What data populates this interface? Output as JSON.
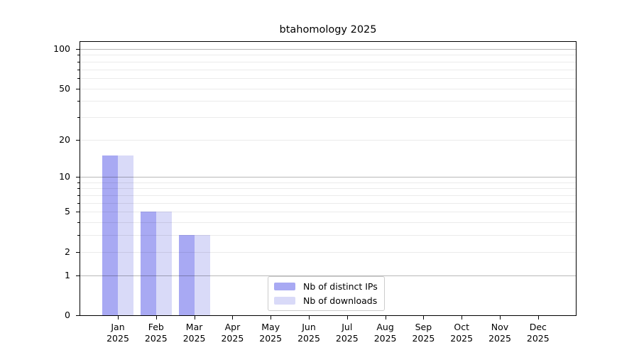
{
  "figure": {
    "title": "btahomology 2025"
  },
  "chart_data": {
    "type": "bar",
    "title": "btahomology 2025",
    "categories": [
      "Jan 2025",
      "Feb 2025",
      "Mar 2025",
      "Apr 2025",
      "May 2025",
      "Jun 2025",
      "Jul 2025",
      "Aug 2025",
      "Sep 2025",
      "Oct 2025",
      "Nov 2025",
      "Dec 2025"
    ],
    "series": [
      {
        "name": "Nb of distinct IPs",
        "color": "#a8a9f3",
        "values": [
          15,
          5,
          3,
          0,
          0,
          0,
          0,
          0,
          0,
          0,
          0,
          0
        ]
      },
      {
        "name": "Nb of downloads",
        "color": "#d9daf8",
        "values": [
          15,
          5,
          3,
          0,
          0,
          0,
          0,
          0,
          0,
          0,
          0,
          0
        ]
      }
    ],
    "xlabel": "",
    "ylabel": "",
    "y_scale": "log10(value+1)",
    "ylim": [
      0,
      115
    ],
    "y_axis": {
      "labeled_ticks": [
        0,
        1,
        2,
        5,
        10,
        20,
        50,
        100
      ],
      "minor_ticks": [
        2,
        3,
        4,
        5,
        6,
        7,
        8,
        9,
        20,
        30,
        40,
        50,
        60,
        70,
        80,
        90
      ],
      "major_gridlines": [
        1,
        10,
        100
      ]
    },
    "grid": true,
    "legend_position": "lower center"
  },
  "colors": {
    "background": "#ffffff",
    "spine": "#000000",
    "bar_distinct_ips": "#a8a9f3",
    "bar_downloads": "#d9daf8",
    "legend_border": "#cccccc"
  }
}
